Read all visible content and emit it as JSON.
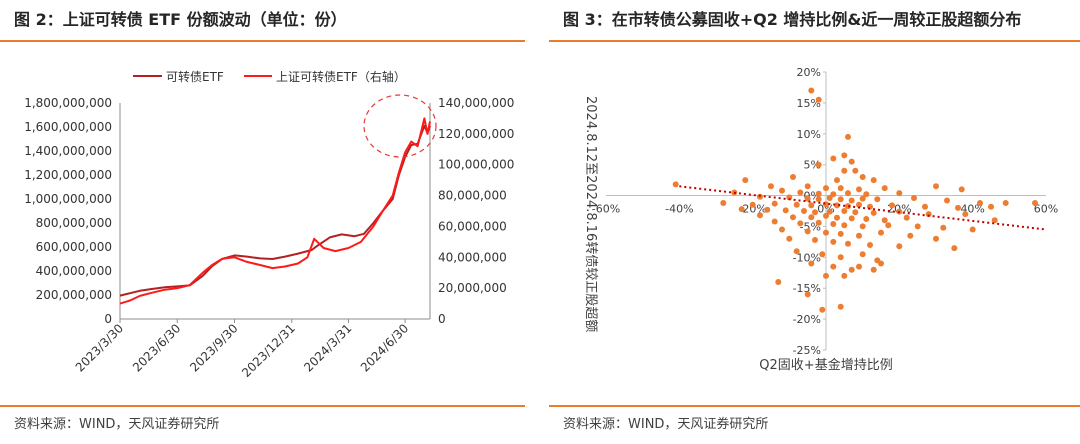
{
  "figures": [
    {
      "title": "图 2：上证可转债 ETF 份额波动（单位：份）",
      "source": "资料来源：WIND，天风证券研究所"
    },
    {
      "title": "图 3：在市转债公募固收+Q2 增持比例&近一周较正股超额分布",
      "source": "资料来源：WIND，天风证券研究所"
    }
  ],
  "colors": {
    "accent_rule": "#E87D2E",
    "series_left": "#B22222",
    "series_right": "#FF1A1A",
    "scatter": "#ED7D31",
    "trend": "#C00000",
    "annotation_circle": "#E53935"
  },
  "chart_data": [
    {
      "type": "line",
      "legend_position": "top",
      "annotation": "dashed red ellipse highlighting recent peak",
      "x_tick_labels": [
        "2023/3/30",
        "2023/6/30",
        "2023/9/30",
        "2023/12/31",
        "2024/3/31",
        "2024/6/30"
      ],
      "y_left_ticks": [
        "0",
        "200,000,000",
        "400,000,000",
        "600,000,000",
        "800,000,000",
        "1,000,000,000",
        "1,200,000,000",
        "1,400,000,000",
        "1,600,000,000",
        "1,800,000,000"
      ],
      "y_right_ticks": [
        "0",
        "20,000,000",
        "40,000,000",
        "60,000,000",
        "80,000,000",
        "100,000,000",
        "120,000,000",
        "140,000,000"
      ],
      "ylim_left": [
        0,
        1800000000
      ],
      "ylim_right": [
        0,
        140000000
      ],
      "series": [
        {
          "name": "可转债ETF",
          "axis": "left",
          "x": [
            "2023-03-30",
            "2023-04-15",
            "2023-05-01",
            "2023-05-20",
            "2023-06-10",
            "2023-06-30",
            "2023-07-20",
            "2023-08-10",
            "2023-08-25",
            "2023-09-10",
            "2023-09-30",
            "2023-10-20",
            "2023-11-10",
            "2023-11-30",
            "2023-12-20",
            "2024-01-10",
            "2024-02-01",
            "2024-02-10",
            "2024-03-01",
            "2024-03-20",
            "2024-04-10",
            "2024-04-25",
            "2024-05-10",
            "2024-05-25",
            "2024-06-10",
            "2024-06-20",
            "2024-06-30",
            "2024-07-10",
            "2024-07-20",
            "2024-07-31",
            "2024-08-05",
            "2024-08-09"
          ],
          "y": [
            195000000,
            215000000,
            235000000,
            250000000,
            265000000,
            272000000,
            280000000,
            360000000,
            440000000,
            500000000,
            530000000,
            520000000,
            505000000,
            500000000,
            520000000,
            545000000,
            575000000,
            610000000,
            680000000,
            705000000,
            690000000,
            710000000,
            800000000,
            900000000,
            1000000000,
            1200000000,
            1350000000,
            1450000000,
            1460000000,
            1610000000,
            1550000000,
            1610000000
          ]
        },
        {
          "name": "上证可转债ETF（右轴）",
          "axis": "right",
          "x": [
            "2023-03-30",
            "2023-04-15",
            "2023-05-01",
            "2023-05-20",
            "2023-06-10",
            "2023-06-30",
            "2023-07-20",
            "2023-08-10",
            "2023-08-25",
            "2023-09-10",
            "2023-09-30",
            "2023-10-20",
            "2023-11-10",
            "2023-11-30",
            "2023-12-20",
            "2024-01-10",
            "2024-01-25",
            "2024-02-05",
            "2024-02-20",
            "2024-03-10",
            "2024-03-31",
            "2024-04-20",
            "2024-05-10",
            "2024-05-25",
            "2024-06-10",
            "2024-06-20",
            "2024-06-30",
            "2024-07-10",
            "2024-07-20",
            "2024-07-31",
            "2024-08-05",
            "2024-08-09"
          ],
          "y": [
            10000000,
            12000000,
            15000000,
            17000000,
            19000000,
            20000000,
            22000000,
            30000000,
            35000000,
            39000000,
            40000000,
            37000000,
            35000000,
            33000000,
            34000000,
            36000000,
            40000000,
            52000000,
            46000000,
            44000000,
            46000000,
            50000000,
            60000000,
            70000000,
            80000000,
            95000000,
            108000000,
            115000000,
            112000000,
            130000000,
            120000000,
            128000000
          ]
        }
      ]
    },
    {
      "type": "scatter",
      "xlabel": "Q2固收+基金增持比例",
      "ylabel": "2024.8.12至2024.8.16转债较正股超额",
      "x_tick_labels": [
        "-60%",
        "-40%",
        "-20%",
        "0%",
        "20%",
        "40%",
        "60%"
      ],
      "y_tick_labels": [
        "-25%",
        "-20%",
        "-15%",
        "-10%",
        "-5%",
        "0%",
        "5%",
        "10%",
        "15%",
        "20%"
      ],
      "xlim": [
        -0.6,
        0.6
      ],
      "ylim": [
        -0.25,
        0.2
      ],
      "grid": false,
      "trendline": {
        "style": "dotted",
        "x": [
          -0.4,
          0.6
        ],
        "y": [
          0.015,
          -0.055
        ]
      },
      "points": [
        [
          -0.41,
          0.018
        ],
        [
          -0.04,
          0.17
        ],
        [
          -0.02,
          0.155
        ],
        [
          0.06,
          0.095
        ],
        [
          0.02,
          0.06
        ],
        [
          -0.02,
          0.05
        ],
        [
          0.05,
          0.04
        ],
        [
          0.08,
          0.04
        ],
        [
          -0.09,
          0.03
        ],
        [
          0.03,
          0.025
        ],
        [
          0.1,
          0.03
        ],
        [
          0.13,
          0.025
        ],
        [
          -0.22,
          0.025
        ],
        [
          -0.15,
          0.015
        ],
        [
          -0.05,
          0.015
        ],
        [
          0.0,
          0.012
        ],
        [
          0.04,
          0.012
        ],
        [
          0.09,
          0.01
        ],
        [
          0.16,
          0.012
        ],
        [
          0.3,
          0.015
        ],
        [
          0.37,
          0.01
        ],
        [
          -0.12,
          0.008
        ],
        [
          -0.07,
          0.005
        ],
        [
          -0.02,
          0.003
        ],
        [
          0.02,
          0.002
        ],
        [
          0.06,
          0.004
        ],
        [
          0.11,
          0.002
        ],
        [
          0.2,
          0.004
        ],
        [
          0.05,
          0.065
        ],
        [
          0.07,
          0.055
        ],
        [
          -0.25,
          0.005
        ],
        [
          -0.18,
          -0.002
        ],
        [
          -0.1,
          -0.003
        ],
        [
          -0.05,
          -0.005
        ],
        [
          -0.02,
          -0.006
        ],
        [
          0.01,
          -0.004
        ],
        [
          0.04,
          -0.006
        ],
        [
          0.07,
          -0.008
        ],
        [
          0.1,
          -0.005
        ],
        [
          0.14,
          -0.006
        ],
        [
          0.24,
          -0.004
        ],
        [
          0.33,
          -0.008
        ],
        [
          0.42,
          -0.012
        ],
        [
          0.49,
          -0.012
        ],
        [
          0.57,
          -0.012
        ],
        [
          -0.28,
          -0.012
        ],
        [
          -0.2,
          -0.015
        ],
        [
          -0.14,
          -0.013
        ],
        [
          -0.08,
          -0.015
        ],
        [
          -0.04,
          -0.016
        ],
        [
          0.0,
          -0.014
        ],
        [
          0.03,
          -0.016
        ],
        [
          0.06,
          -0.017
        ],
        [
          0.09,
          -0.015
        ],
        [
          0.12,
          -0.018
        ],
        [
          0.18,
          -0.016
        ],
        [
          0.27,
          -0.018
        ],
        [
          0.36,
          -0.02
        ],
        [
          0.45,
          -0.018
        ],
        [
          -0.23,
          -0.022
        ],
        [
          -0.16,
          -0.023
        ],
        [
          -0.11,
          -0.024
        ],
        [
          -0.06,
          -0.025
        ],
        [
          -0.03,
          -0.027
        ],
        [
          0.01,
          -0.026
        ],
        [
          0.05,
          -0.025
        ],
        [
          0.08,
          -0.027
        ],
        [
          0.13,
          -0.028
        ],
        [
          0.2,
          -0.026
        ],
        [
          0.28,
          -0.03
        ],
        [
          0.38,
          -0.03
        ],
        [
          -0.18,
          -0.032
        ],
        [
          -0.09,
          -0.035
        ],
        [
          -0.04,
          -0.035
        ],
        [
          0.0,
          -0.033
        ],
        [
          0.03,
          -0.036
        ],
        [
          0.07,
          -0.037
        ],
        [
          0.11,
          -0.038
        ],
        [
          0.16,
          -0.04
        ],
        [
          0.22,
          -0.036
        ],
        [
          -0.14,
          -0.042
        ],
        [
          -0.07,
          -0.045
        ],
        [
          -0.02,
          -0.044
        ],
        [
          0.02,
          -0.046
        ],
        [
          0.05,
          -0.048
        ],
        [
          0.1,
          -0.05
        ],
        [
          0.17,
          -0.048
        ],
        [
          0.25,
          -0.05
        ],
        [
          0.32,
          -0.052
        ],
        [
          0.4,
          -0.055
        ],
        [
          0.46,
          -0.04
        ],
        [
          -0.12,
          -0.055
        ],
        [
          -0.05,
          -0.058
        ],
        [
          0.0,
          -0.06
        ],
        [
          0.04,
          -0.062
        ],
        [
          0.09,
          -0.065
        ],
        [
          0.15,
          -0.06
        ],
        [
          0.23,
          -0.065
        ],
        [
          0.3,
          -0.07
        ],
        [
          -0.1,
          -0.07
        ],
        [
          -0.03,
          -0.072
        ],
        [
          0.02,
          -0.075
        ],
        [
          0.06,
          -0.078
        ],
        [
          0.12,
          -0.08
        ],
        [
          0.2,
          -0.082
        ],
        [
          0.35,
          -0.085
        ],
        [
          -0.08,
          -0.09
        ],
        [
          -0.01,
          -0.095
        ],
        [
          0.04,
          -0.1
        ],
        [
          0.1,
          -0.095
        ],
        [
          0.14,
          -0.105
        ],
        [
          -0.04,
          -0.11
        ],
        [
          0.02,
          -0.115
        ],
        [
          0.07,
          -0.12
        ],
        [
          0.15,
          -0.11
        ],
        [
          0.0,
          -0.13
        ],
        [
          -0.13,
          -0.14
        ],
        [
          -0.05,
          -0.16
        ],
        [
          0.05,
          -0.13
        ],
        [
          -0.01,
          -0.185
        ],
        [
          0.04,
          -0.18
        ],
        [
          0.13,
          -0.12
        ],
        [
          0.09,
          -0.115
        ]
      ]
    }
  ]
}
